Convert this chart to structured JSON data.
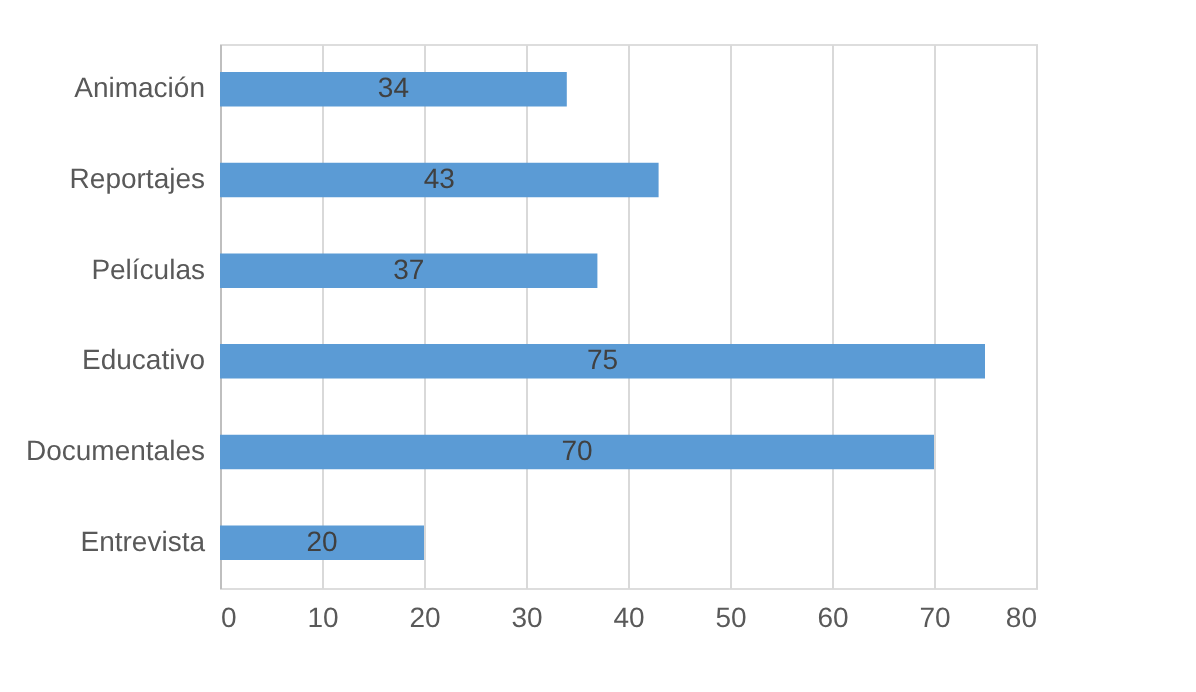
{
  "chart_data": {
    "type": "bar",
    "orientation": "horizontal",
    "categories": [
      "Animación",
      "Reportajes",
      "Películas",
      "Educativo",
      "Documentales",
      "Entrevista"
    ],
    "values": [
      34,
      43,
      37,
      75,
      70,
      20
    ],
    "color": "#5b9bd5",
    "xlim": [
      0,
      80
    ],
    "xticks": [
      0,
      10,
      20,
      30,
      40,
      50,
      60,
      70,
      80
    ],
    "grid": "x",
    "data_labels": true
  }
}
